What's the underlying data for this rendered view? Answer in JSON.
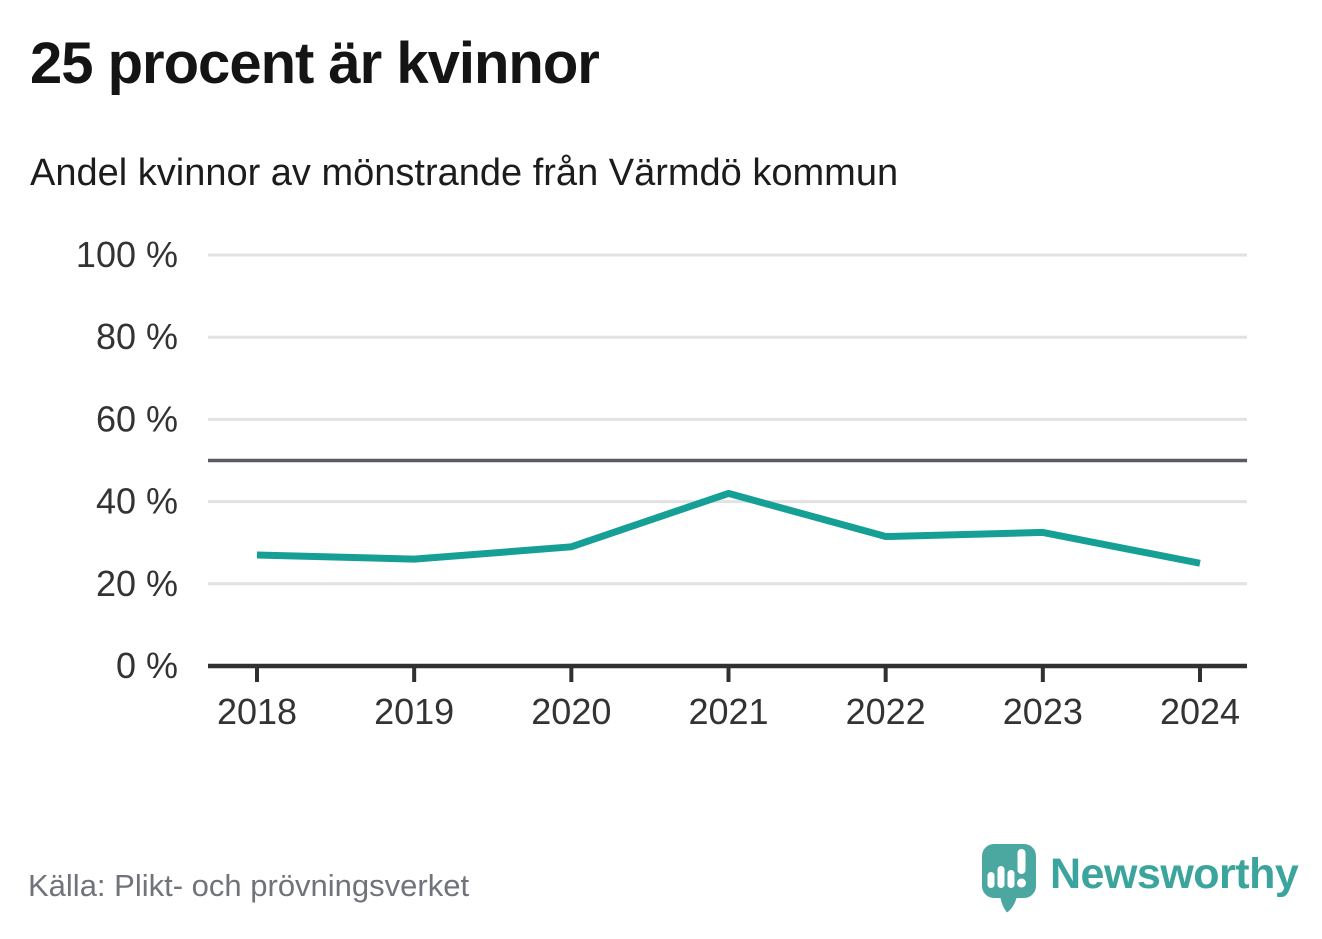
{
  "header": {
    "title": "25 procent är kvinnor",
    "subtitle": "Andel kvinnor av mönstrande från Värmdö kommun"
  },
  "footer": {
    "source": "Källa: Plikt- och prövningsverket",
    "brand": "Newsworthy"
  },
  "colors": {
    "line": "#16A095",
    "grid": "#E2E2E4",
    "reference": "#5A5A63",
    "axis": "#303030",
    "tick_label": "#333333",
    "title": "#141414",
    "subtitle": "#1C1C1C",
    "source_text": "#70737A",
    "brand_teal": "#3BA49D",
    "logo_fill": "#4AA8A1"
  },
  "chart_data": {
    "type": "line",
    "title": "25 procent är kvinnor",
    "subtitle": "Andel kvinnor av mönstrande från Värmdö kommun",
    "x": [
      2018,
      2019,
      2020,
      2021,
      2022,
      2023,
      2024
    ],
    "series": [
      {
        "name": "Andel kvinnor av mönstrande",
        "values": [
          27,
          26,
          29,
          42,
          31.5,
          32.5,
          25
        ]
      }
    ],
    "xlabel": "",
    "ylabel": "",
    "ylim": [
      0,
      100
    ],
    "yticks": [
      0,
      20,
      40,
      60,
      80,
      100
    ],
    "ytick_suffix": " %",
    "reference_line": 50,
    "grid": true,
    "legend": false
  }
}
